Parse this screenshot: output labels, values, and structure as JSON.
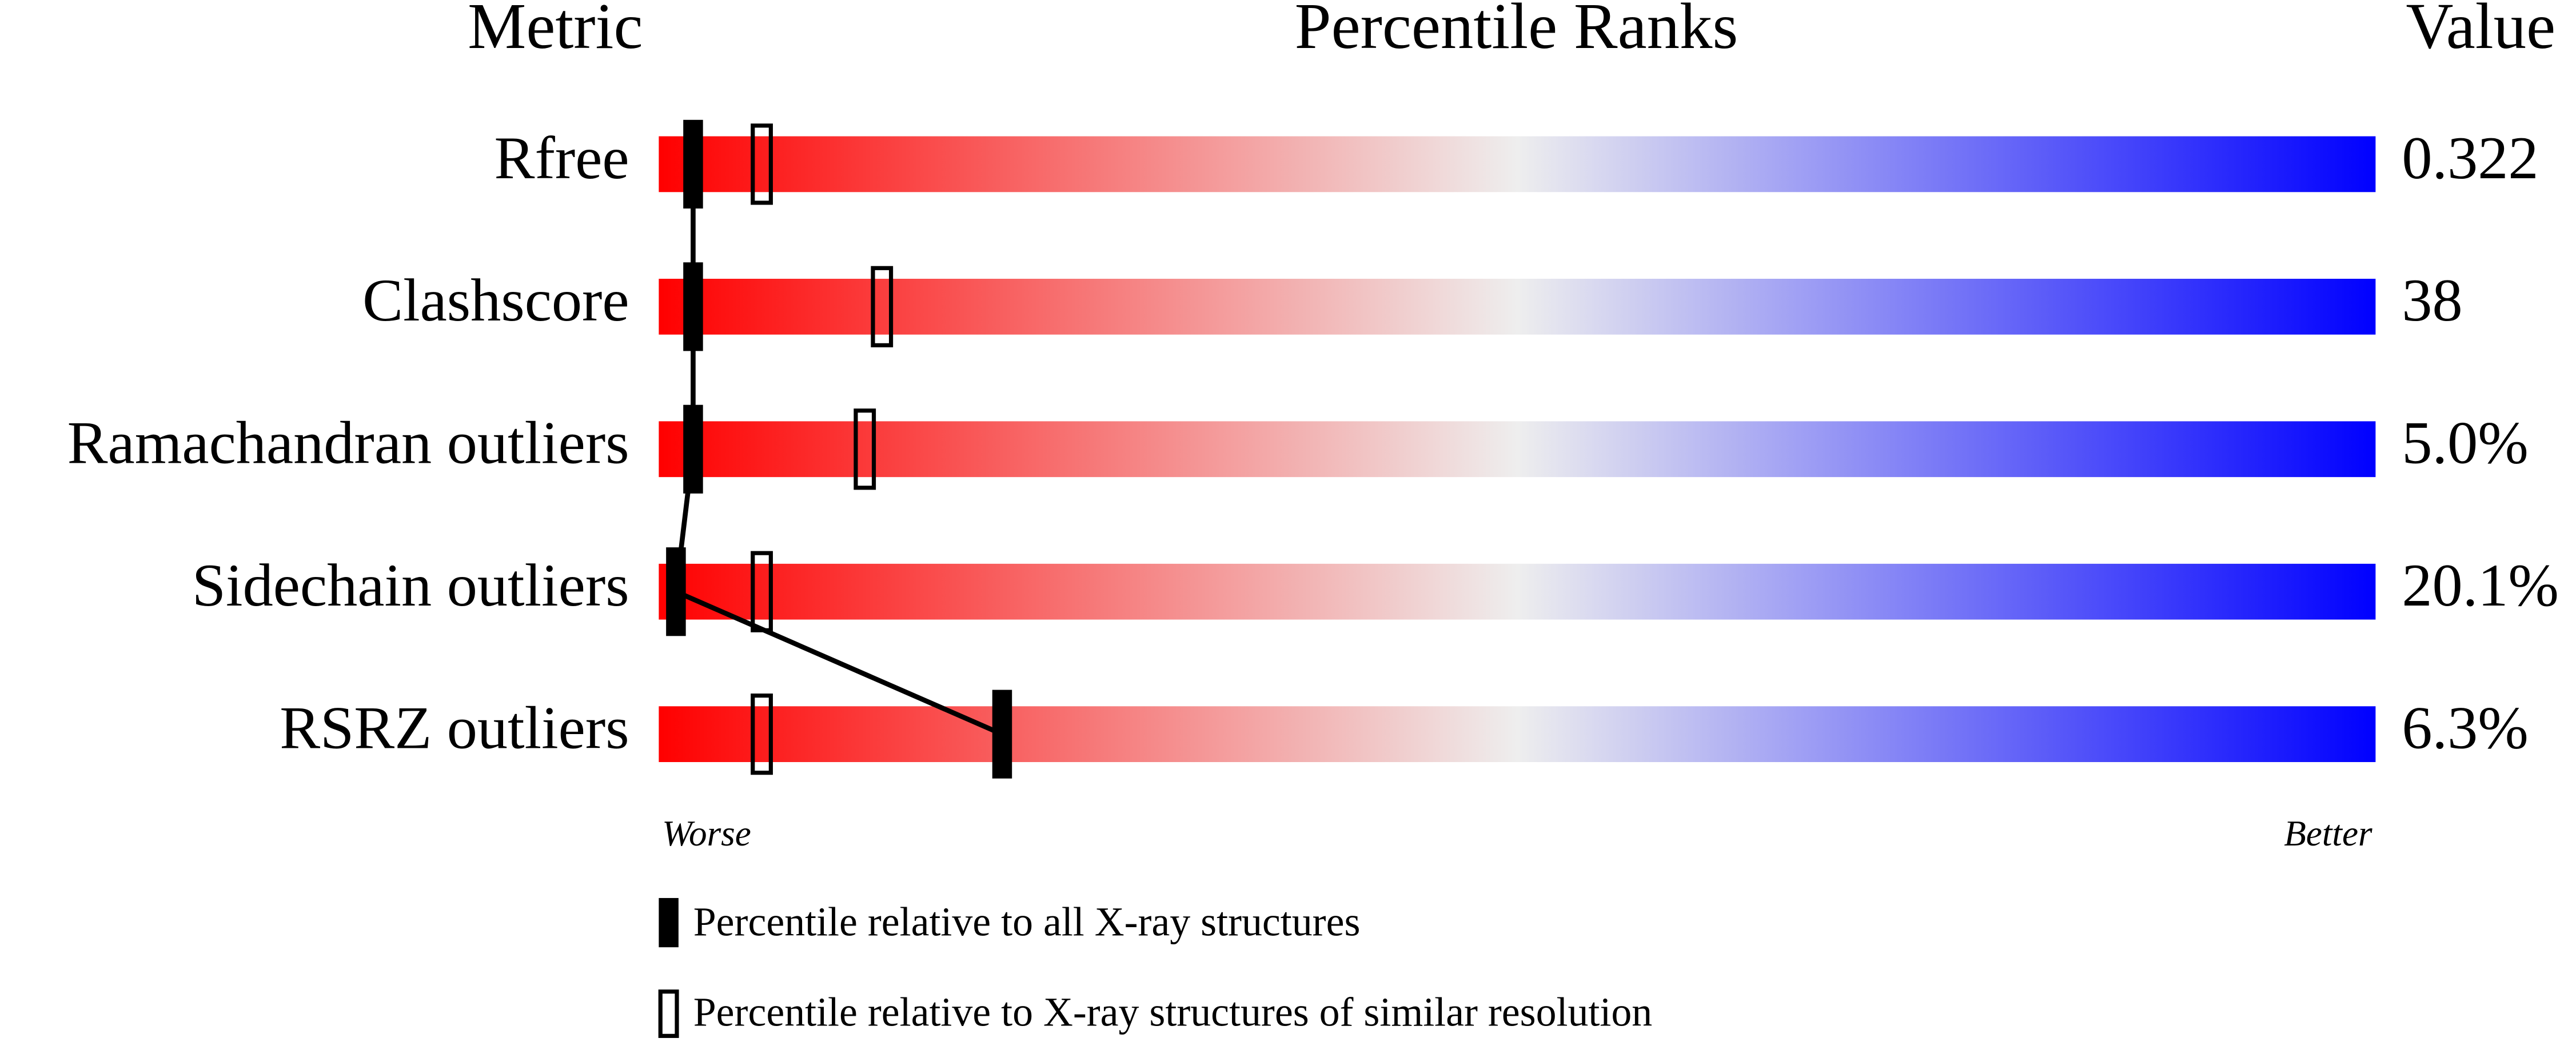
{
  "chart_data": {
    "type": "percentile-slider",
    "headers": {
      "metric": "Metric",
      "ranks": "Percentile Ranks",
      "value": "Value"
    },
    "categories": [
      "Rfree",
      "Clashscore",
      "Ramachandran outliers",
      "Sidechain outliers",
      "RSRZ outliers"
    ],
    "metric_values": [
      "0.322",
      "38",
      "5.0%",
      "20.1%",
      "6.3%"
    ],
    "series": [
      {
        "name": "Percentile relative to all X-ray structures",
        "marker": "filled",
        "color": "#000000",
        "values": [
          2,
          2,
          2,
          1,
          20
        ]
      },
      {
        "name": "Percentile relative to X-ray structures of similar resolution",
        "marker": "open",
        "color": "#000000",
        "values": [
          6,
          13,
          12,
          6,
          6
        ]
      }
    ],
    "xlim": [
      0,
      100
    ],
    "axis_labels": {
      "low": "Worse",
      "high": "Better"
    },
    "gradient": [
      "#ff0000",
      "#eeeeee",
      "#0000ff"
    ]
  }
}
